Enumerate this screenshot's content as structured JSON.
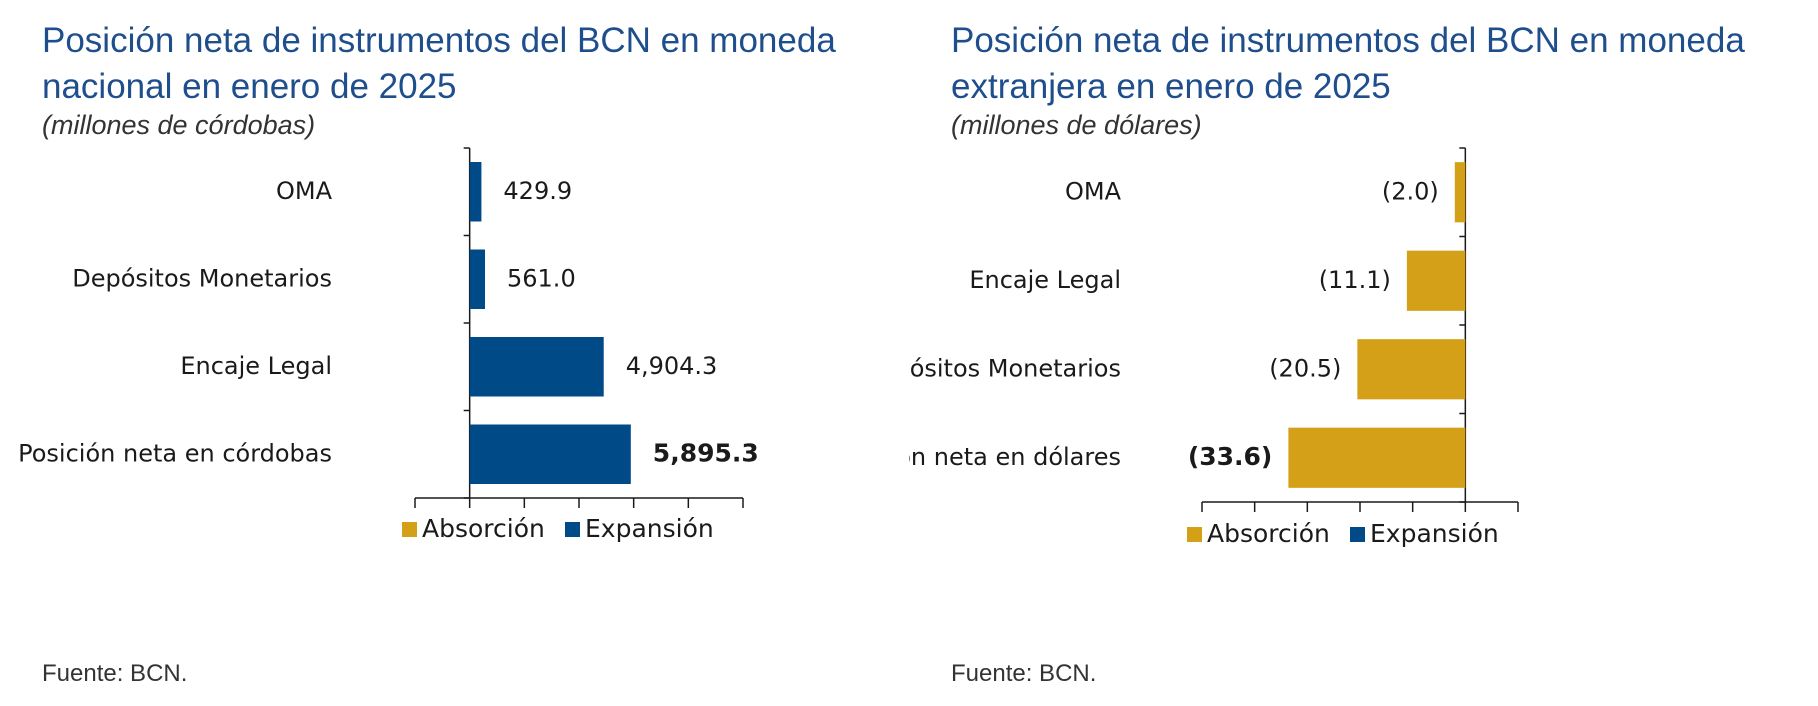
{
  "colors": {
    "absorcion": "#D4A017",
    "expansion": "#004A87",
    "axis": "#1a1a1a",
    "title": "#1f4e8c"
  },
  "left": {
    "title": "Posición neta de instrumentos del BCN en moneda nacional en enero de 2025",
    "subtitle": "(millones de córdobas)",
    "source": "Fuente: BCN."
  },
  "right": {
    "title": "Posición neta de instrumentos del BCN en moneda extranjera en enero de 2025",
    "subtitle": "(millones de dólares)",
    "source": "Fuente: BCN."
  },
  "chart_data": [
    {
      "type": "bar",
      "orientation": "horizontal",
      "title": "Posición neta de instrumentos del BCN en moneda nacional en enero de 2025",
      "subtitle": "(millones de córdobas)",
      "categories": [
        "OMA",
        "Depósitos Monetarios",
        "Encaje Legal",
        "Posición neta en córdobas"
      ],
      "values": [
        429.9,
        561.0,
        4904.3,
        5895.3
      ],
      "value_labels": [
        "429.9",
        "561.0",
        "4,904.3",
        "5,895.3"
      ],
      "bold_last": true,
      "series_color": "expansion",
      "xlim": [
        -2000,
        10000
      ],
      "tick_step": 2000,
      "legend": [
        "Absorción",
        "Expansión"
      ],
      "legend_position": "bottom"
    },
    {
      "type": "bar",
      "orientation": "horizontal",
      "title": "Posición neta de instrumentos del BCN en moneda extranjera en enero de 2025",
      "subtitle": "(millones de dólares)",
      "categories": [
        "OMA",
        "Encaje Legal",
        "Depósitos Monetarios",
        "Posición neta en dólares"
      ],
      "values": [
        -2.0,
        -11.1,
        -20.5,
        -33.6
      ],
      "value_labels": [
        "(2.0)",
        "(11.1)",
        "(20.5)",
        "(33.6)"
      ],
      "bold_last": true,
      "series_color": "absorcion",
      "xlim": [
        -50,
        10
      ],
      "tick_step": 10,
      "legend": [
        "Absorción",
        "Expansión"
      ],
      "legend_position": "bottom"
    }
  ]
}
